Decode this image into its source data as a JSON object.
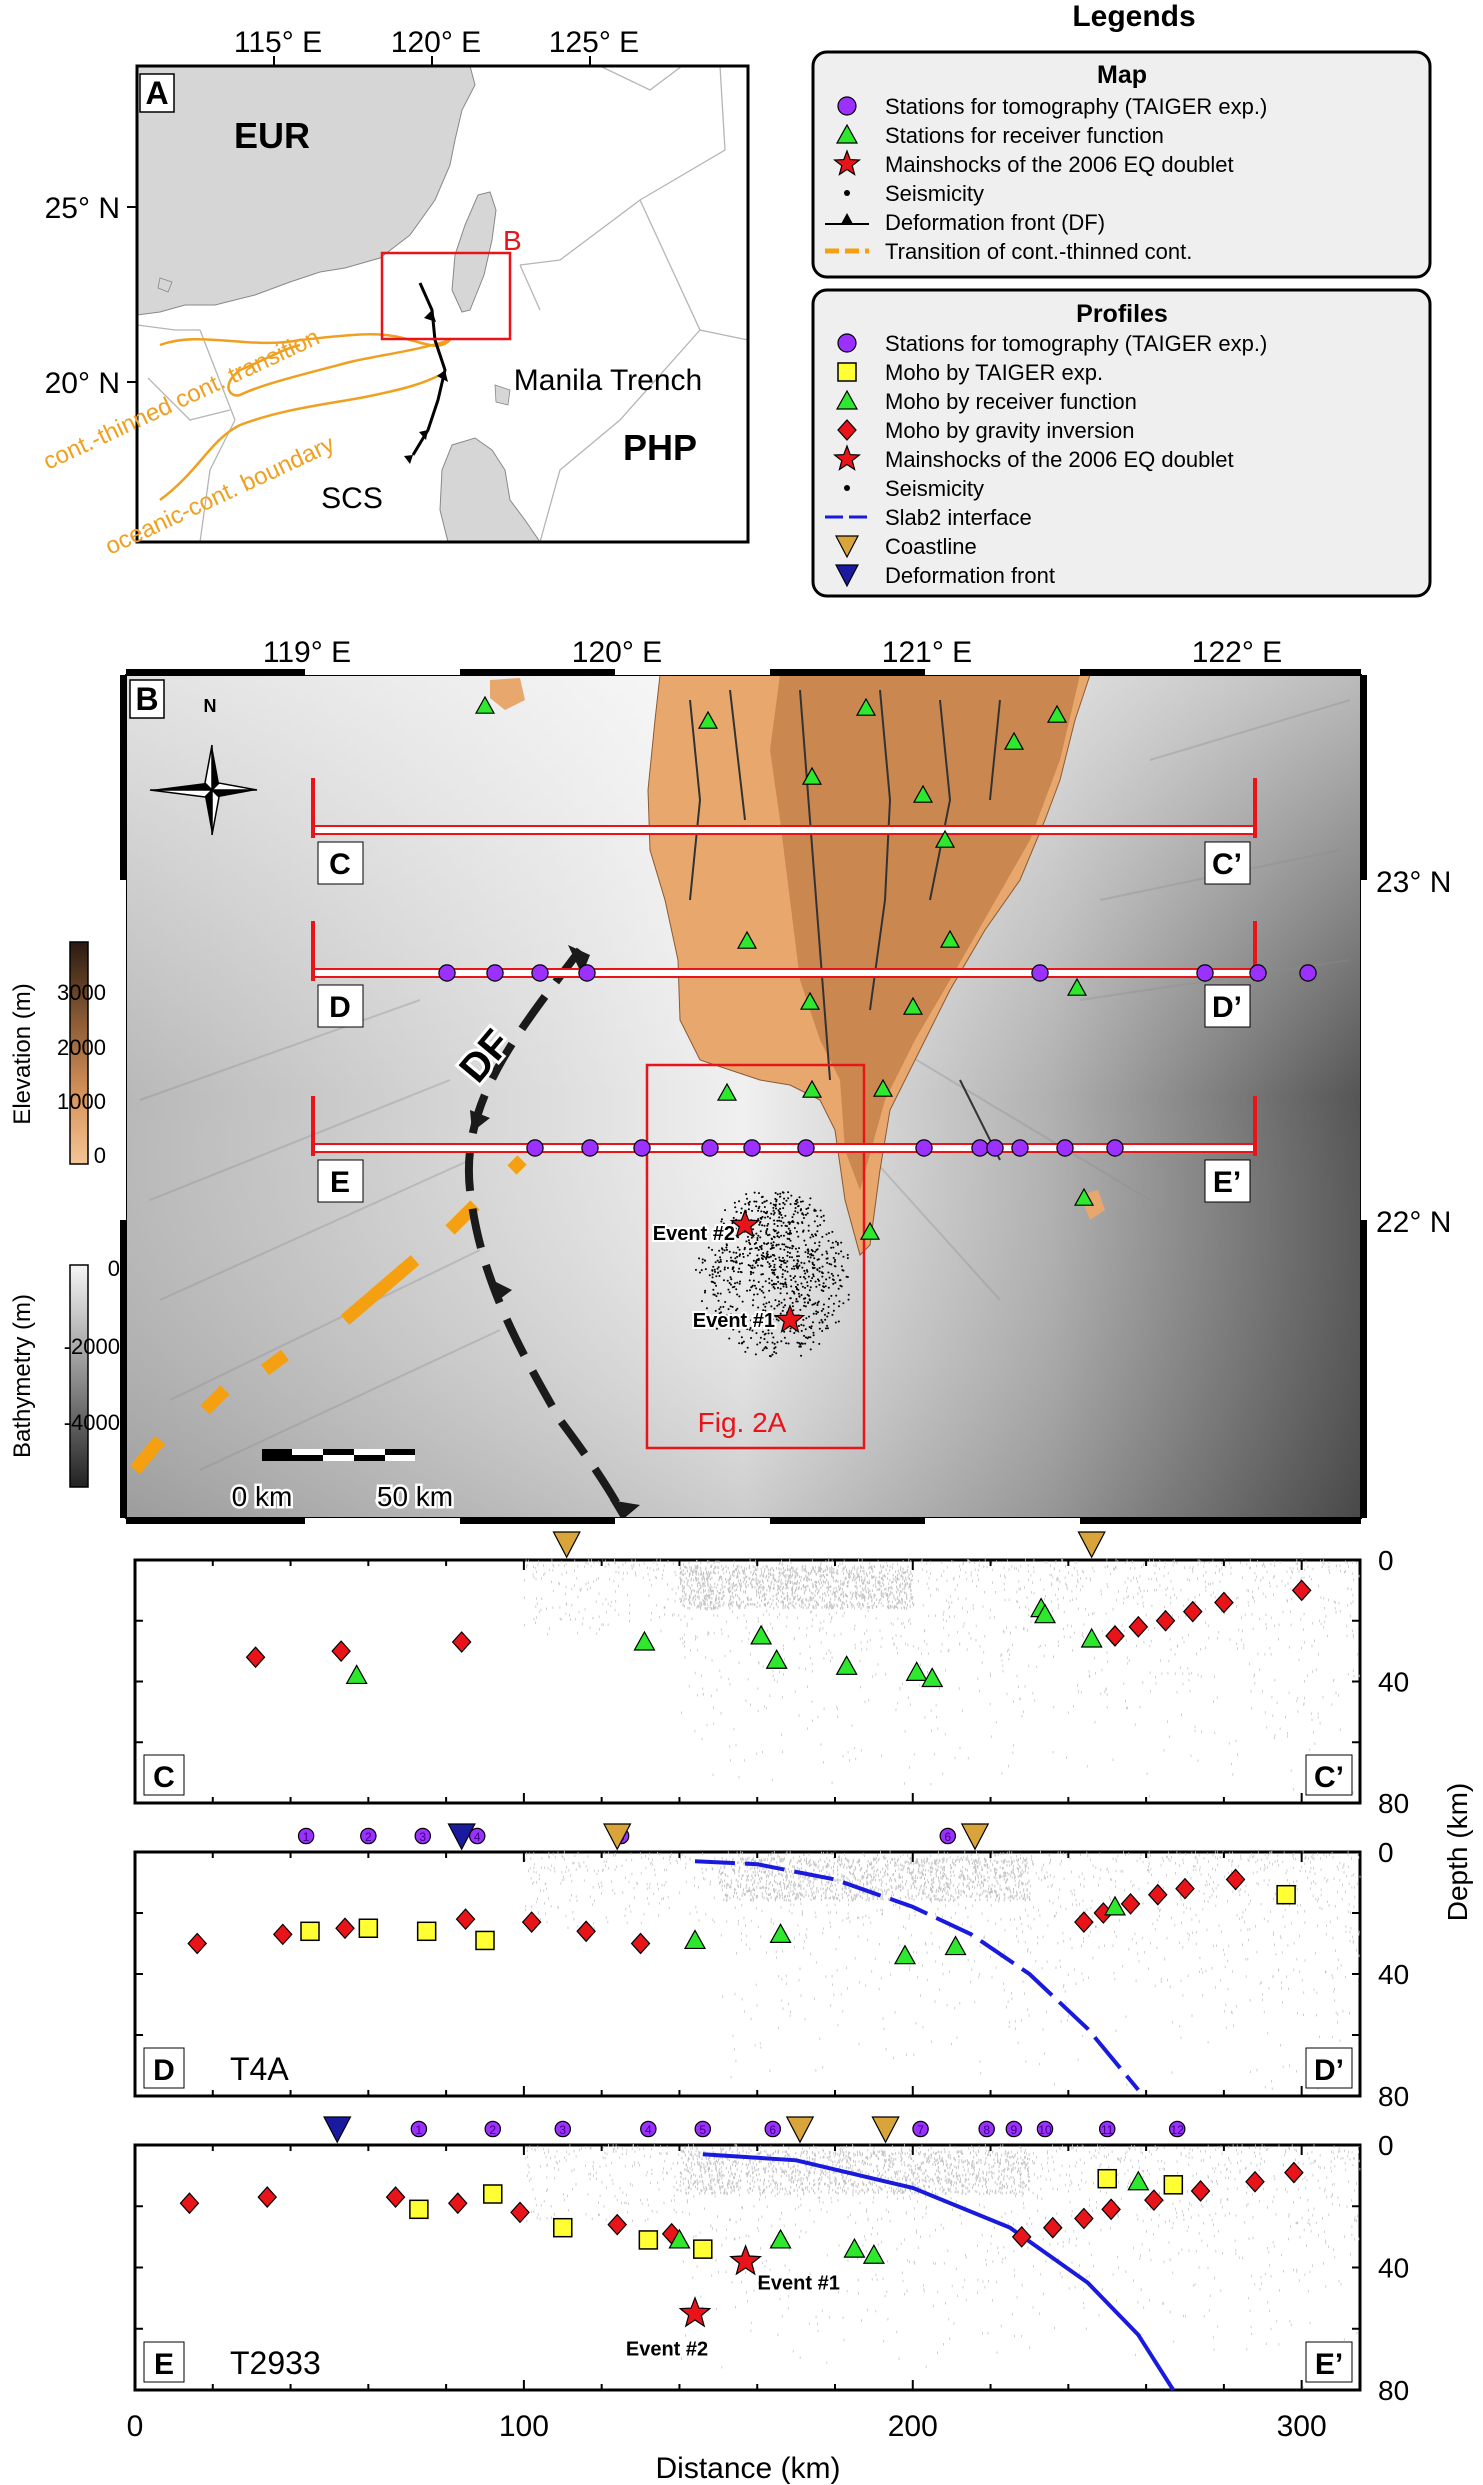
{
  "legend": {
    "title": "Legends",
    "map_title": "Map",
    "map_items": [
      {
        "symbol": "circle-purple",
        "label": "Stations for tomography (TAIGER exp.)"
      },
      {
        "symbol": "triangle-green",
        "label": "Stations for receiver function"
      },
      {
        "symbol": "star-red",
        "label": "Mainshocks of the 2006 EQ doublet"
      },
      {
        "symbol": "dot-black",
        "label": "Seismicity"
      },
      {
        "symbol": "front-line",
        "label": "Deformation front (DF)"
      },
      {
        "symbol": "dash-orange",
        "label": "Transition of cont.-thinned cont."
      }
    ],
    "profiles_title": "Profiles",
    "profile_items": [
      {
        "symbol": "circle-purple",
        "label": "Stations for tomography (TAIGER exp.)"
      },
      {
        "symbol": "square-yellow",
        "label": "Moho by TAIGER exp."
      },
      {
        "symbol": "triangle-green",
        "label": "Moho by receiver function"
      },
      {
        "symbol": "diamond-red",
        "label": "Moho by gravity inversion"
      },
      {
        "symbol": "star-red",
        "label": "Mainshocks of the 2006 EQ doublet"
      },
      {
        "symbol": "dot-black",
        "label": "Seismicity"
      },
      {
        "symbol": "dash-blue",
        "label": "Slab2 interface"
      },
      {
        "symbol": "tri-down-orange",
        "label": "Coastline"
      },
      {
        "symbol": "tri-down-navy",
        "label": "Deformation front"
      }
    ]
  },
  "panel_a": {
    "label": "A",
    "lon_ticks": [
      "115° E",
      "120° E",
      "125° E"
    ],
    "lat_ticks": [
      "25° N",
      "20° N"
    ],
    "eur": "EUR",
    "php": "PHP",
    "scs": "SCS",
    "manila": "Manila Trench",
    "box_label": "B",
    "transition": "cont.-thinned cont. transition",
    "boundary": "oceanic-cont. boundary"
  },
  "panel_b": {
    "label": "B",
    "lon_ticks": [
      "119° E",
      "120° E",
      "121° E",
      "122° E"
    ],
    "lat_ticks": [
      "23° N",
      "22° N"
    ],
    "north": "N",
    "df": "DF",
    "fig_box": "Fig. 2A",
    "event1": "Event #1",
    "event2": "Event #2",
    "scale_0": "0 km",
    "scale_50": "50 km",
    "profile_ends": [
      [
        "C",
        "C’"
      ],
      [
        "D",
        "D’"
      ],
      [
        "E",
        "E’"
      ]
    ],
    "elev_title": "Elevation (m)",
    "elev_ticks": [
      "3000",
      "2000",
      "1000",
      "0"
    ],
    "bathy_title": "Bathymetry (m)",
    "bathy_ticks": [
      "0",
      "-2000",
      "-4000"
    ]
  },
  "profiles": {
    "depth_ticks": [
      "0",
      "40",
      "80"
    ],
    "depth_label": "Depth (km)",
    "x_ticks": [
      "0",
      "100",
      "200",
      "300"
    ],
    "x_label": "Distance (km)",
    "C": {
      "left": "C",
      "right": "C’",
      "tag": "",
      "coast": [
        111,
        246
      ],
      "gravity": [
        [
          31,
          32
        ],
        [
          53,
          30
        ],
        [
          84,
          27
        ],
        [
          300,
          10
        ],
        [
          252,
          25
        ],
        [
          258,
          22
        ],
        [
          265,
          20
        ],
        [
          272,
          17
        ],
        [
          280,
          14
        ]
      ],
      "taiger": [],
      "rf": [
        [
          57,
          38
        ],
        [
          131,
          27
        ],
        [
          161,
          25
        ],
        [
          165,
          33
        ],
        [
          183,
          35
        ],
        [
          201,
          37
        ],
        [
          205,
          39
        ],
        [
          233,
          16
        ],
        [
          234,
          18
        ],
        [
          246,
          26
        ]
      ]
    },
    "D": {
      "left": "D",
      "right": "D’",
      "tag": "T4A",
      "stations": [
        "1",
        "2",
        "3",
        "4",
        "5",
        "6"
      ],
      "coast": [
        124,
        216
      ],
      "df": [
        84
      ],
      "gravity": [
        [
          16,
          30
        ],
        [
          38,
          27
        ],
        [
          54,
          25
        ],
        [
          85,
          22
        ],
        [
          102,
          23
        ],
        [
          116,
          26
        ],
        [
          130,
          30
        ],
        [
          244,
          23
        ],
        [
          249,
          20
        ],
        [
          256,
          17
        ],
        [
          263,
          14
        ],
        [
          270,
          12
        ],
        [
          283,
          9
        ]
      ],
      "taiger": [
        [
          45,
          26
        ],
        [
          60,
          25
        ],
        [
          75,
          26
        ],
        [
          90,
          29
        ],
        [
          296,
          14
        ]
      ],
      "rf": [
        [
          144,
          29
        ],
        [
          166,
          27
        ],
        [
          198,
          34
        ],
        [
          211,
          31
        ],
        [
          252,
          18
        ]
      ],
      "slab2": [
        [
          144,
          3
        ],
        [
          160,
          4
        ],
        [
          180,
          9
        ],
        [
          200,
          18
        ],
        [
          215,
          27
        ],
        [
          230,
          40
        ],
        [
          245,
          58
        ],
        [
          258,
          78
        ]
      ]
    },
    "E": {
      "left": "E",
      "right": "E’",
      "tag": "T2933",
      "stations": [
        "1",
        "2",
        "3",
        "4",
        "5",
        "6",
        "7",
        "8",
        "9",
        "10",
        "11",
        "12"
      ],
      "coast": [
        171,
        193
      ],
      "df": [
        52
      ],
      "gravity": [
        [
          14,
          19
        ],
        [
          34,
          17
        ],
        [
          67,
          17
        ],
        [
          83,
          19
        ],
        [
          99,
          22
        ],
        [
          124,
          26
        ],
        [
          138,
          29
        ],
        [
          228,
          30
        ],
        [
          236,
          27
        ],
        [
          244,
          24
        ],
        [
          251,
          21
        ],
        [
          262,
          18
        ],
        [
          274,
          15
        ],
        [
          288,
          12
        ],
        [
          298,
          9
        ]
      ],
      "taiger": [
        [
          73,
          21
        ],
        [
          92,
          16
        ],
        [
          110,
          27
        ],
        [
          132,
          31
        ],
        [
          146,
          34
        ],
        [
          250,
          11
        ],
        [
          267,
          13
        ]
      ],
      "rf": [
        [
          140,
          31
        ],
        [
          166,
          31
        ],
        [
          185,
          34
        ],
        [
          190,
          36
        ],
        [
          258,
          12
        ]
      ],
      "slab2": [
        [
          146,
          3
        ],
        [
          170,
          5
        ],
        [
          200,
          14
        ],
        [
          225,
          27
        ],
        [
          245,
          45
        ],
        [
          258,
          62
        ],
        [
          267,
          80
        ]
      ],
      "events": [
        {
          "label": "Event #1",
          "x": 157,
          "z": 38
        },
        {
          "label": "Event #2",
          "x": 144,
          "z": 55
        }
      ]
    }
  }
}
